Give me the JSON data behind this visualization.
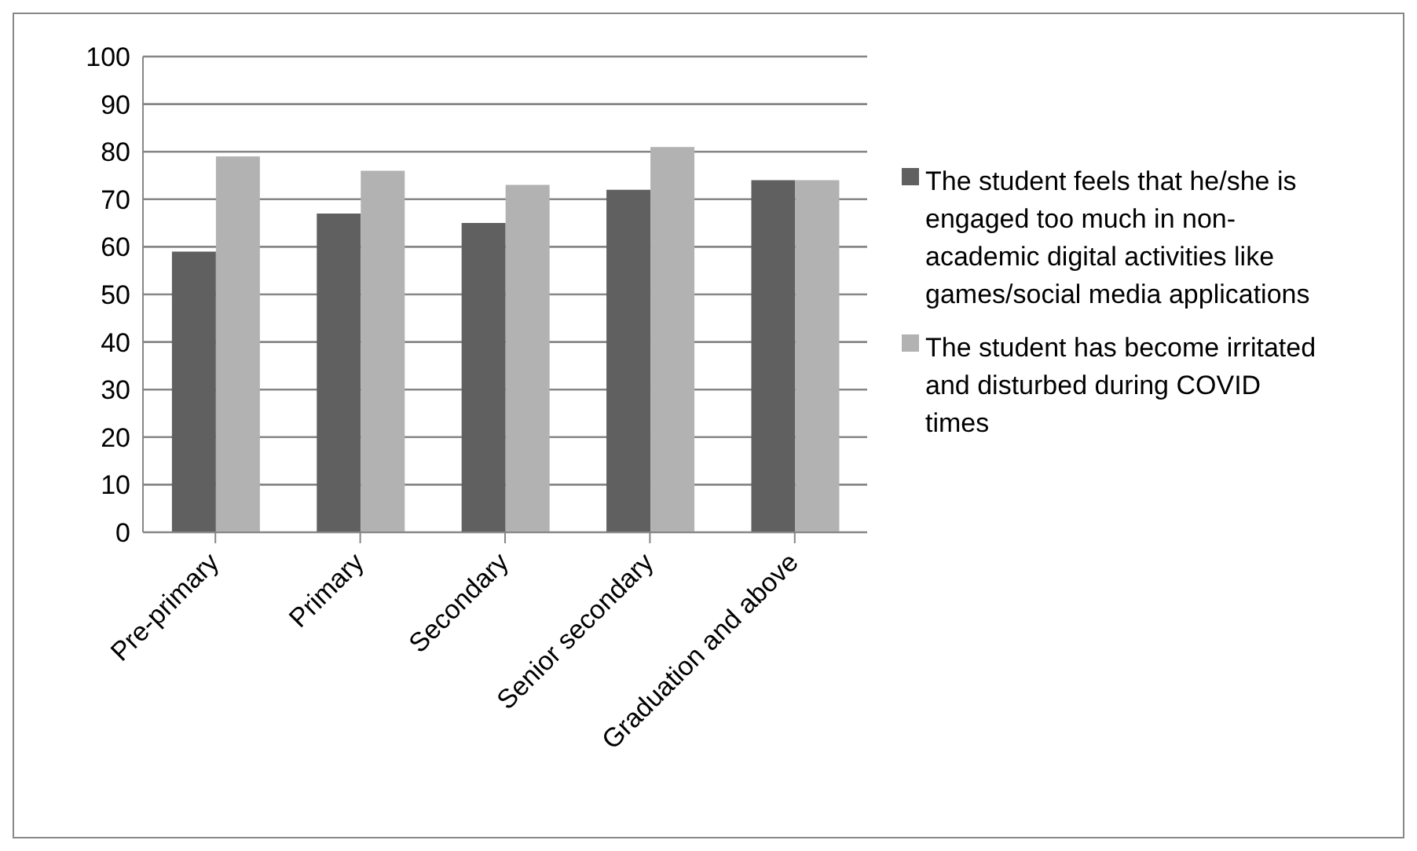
{
  "chart_data": {
    "type": "bar",
    "categories": [
      "Pre-primary",
      "Primary",
      "Secondary",
      "Senior secondary",
      "Graduation and above"
    ],
    "series": [
      {
        "name": "The student feels that he/she is engaged too much in non-academic digital activities like games/social media applications",
        "color": "#606060",
        "values": [
          59,
          67,
          65,
          72,
          74
        ]
      },
      {
        "name": "The student has become irritated and disturbed during COVID times",
        "color": "#b2b2b2",
        "values": [
          79,
          76,
          73,
          81,
          74
        ]
      }
    ],
    "ylim": [
      0,
      100
    ],
    "yticks": [
      0,
      10,
      20,
      30,
      40,
      50,
      60,
      70,
      80,
      90,
      100
    ],
    "grid": "y",
    "legend": "right"
  }
}
